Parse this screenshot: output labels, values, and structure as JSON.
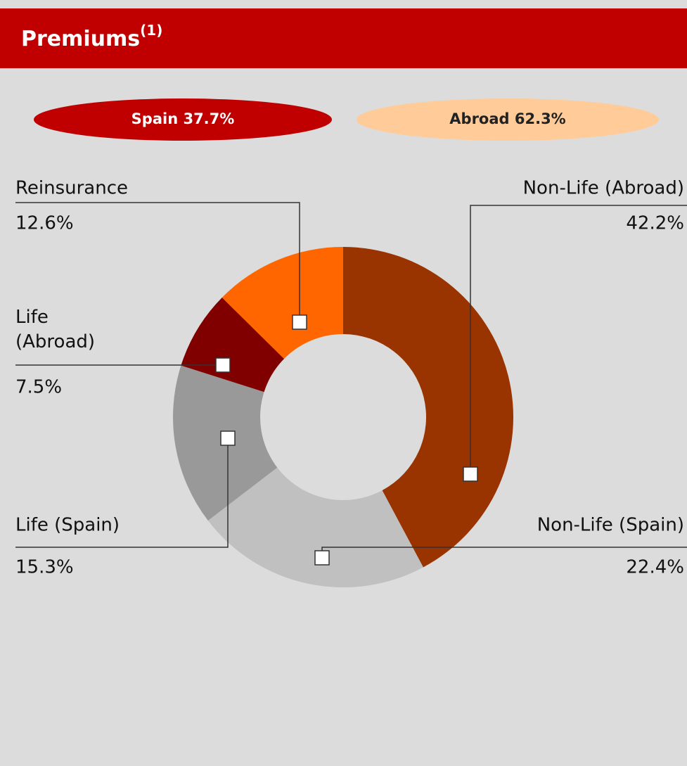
{
  "chart_data": {
    "type": "donut",
    "title": "Premiums",
    "title_note": "(1)",
    "badges": [
      {
        "text": "Spain 37.7%",
        "color": "#c00000",
        "text_color": "#ffffff"
      },
      {
        "text": "Abroad 62.3%",
        "color": "#ffcc99",
        "text_color": "#222222"
      }
    ],
    "categories": [
      "Non-Life (Abroad)",
      "Non-Life (Spain)",
      "Life (Spain)",
      "Life (Abroad)",
      "Reinsurance"
    ],
    "values": [
      42.2,
      22.4,
      15.3,
      7.5,
      12.6
    ],
    "value_labels": [
      "42.2%",
      "22.4%",
      "15.3%",
      "7.5%",
      "12.6%"
    ],
    "colors": [
      "#993300",
      "#c0c0c0",
      "#999999",
      "#800000",
      "#ff6600"
    ]
  }
}
